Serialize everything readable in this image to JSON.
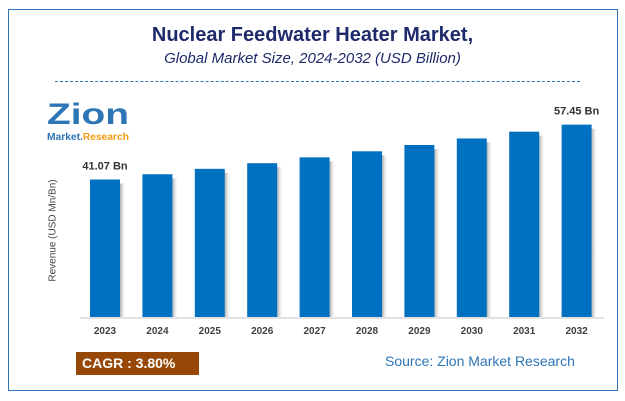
{
  "header": {
    "title": "Nuclear Feedwater Heater Market,",
    "subtitle": "Global Market Size, 2024-2032 (USD Billion)"
  },
  "logo": {
    "text_main": "Zion",
    "text_left": "Market.",
    "text_right": "Research"
  },
  "footer": {
    "cagr": "CAGR : 3.80%",
    "source": "Source: Zion Market Research"
  },
  "colors": {
    "bar": "#0070c0",
    "title": "#1f2a6b",
    "cagr_bg": "#974806",
    "source": "#2e75b6"
  },
  "chart_data": {
    "type": "bar",
    "title": "Nuclear Feedwater Heater Market,",
    "subtitle": "Global Market Size, 2024-2032 (USD Billion)",
    "xlabel": "",
    "ylabel": "Revenue (USD Mn/Bn)",
    "categories": [
      "2023",
      "2024",
      "2025",
      "2026",
      "2027",
      "2028",
      "2029",
      "2030",
      "2031",
      "2032"
    ],
    "values": [
      41.07,
      42.63,
      44.25,
      45.93,
      47.68,
      49.49,
      51.37,
      53.32,
      55.35,
      57.45
    ],
    "data_labels": {
      "0": "41.07 Bn",
      "9": "57.45 Bn"
    },
    "ylim": [
      0,
      60
    ],
    "grid": false,
    "legend": "none"
  }
}
